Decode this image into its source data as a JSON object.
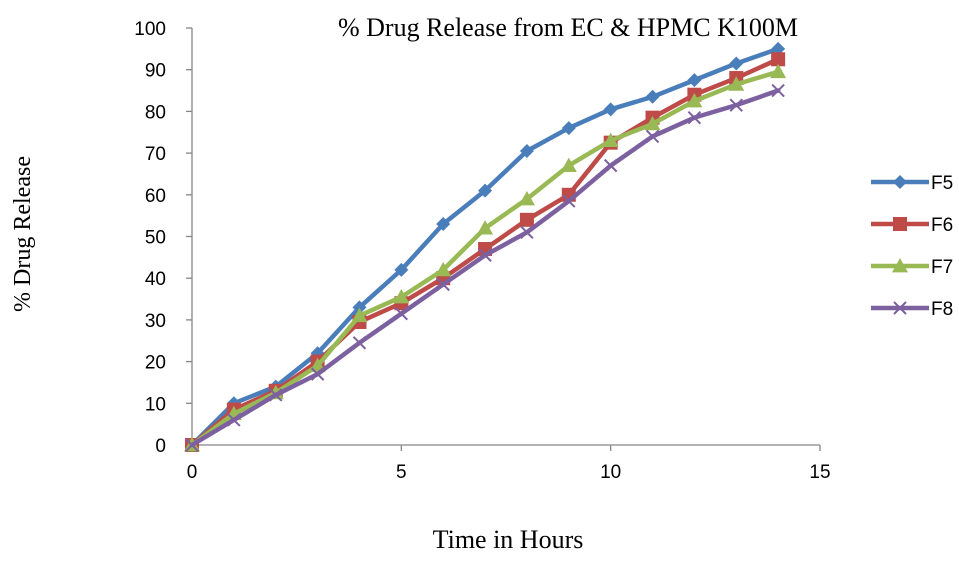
{
  "chart_data": {
    "type": "line",
    "title": "% Drug Release from EC & HPMC K100M",
    "xlabel": "Time in Hours",
    "ylabel": "% Drug Release",
    "xlim": [
      0,
      15
    ],
    "ylim": [
      0,
      100
    ],
    "xticks": [
      0,
      5,
      10,
      15
    ],
    "yticks": [
      0,
      10,
      20,
      30,
      40,
      50,
      60,
      70,
      80,
      90,
      100
    ],
    "grid": false,
    "legend_position": "right",
    "x": [
      0,
      1,
      2,
      3,
      4,
      5,
      6,
      7,
      8,
      9,
      10,
      11,
      12,
      13,
      14
    ],
    "series": [
      {
        "name": "F5",
        "color": "#4a7ebb",
        "marker": "diamond",
        "values": [
          0,
          10,
          14,
          22,
          33,
          42,
          53,
          61,
          70.5,
          76,
          80.5,
          83.5,
          87.5,
          91.5,
          95
        ]
      },
      {
        "name": "F6",
        "color": "#be4b48",
        "marker": "square",
        "values": [
          0,
          8.5,
          13,
          20,
          29.5,
          34,
          40,
          47,
          54,
          60,
          72.5,
          78.5,
          84,
          88,
          92.5
        ]
      },
      {
        "name": "F7",
        "color": "#98b954",
        "marker": "triangle",
        "values": [
          0,
          7.5,
          12.5,
          19,
          31,
          35.5,
          42,
          52,
          59,
          67,
          73,
          77,
          82.5,
          86.5,
          89.5
        ]
      },
      {
        "name": "F8",
        "color": "#7d60a0",
        "marker": "x",
        "values": [
          0,
          6,
          12,
          17,
          24.5,
          31.5,
          38.5,
          45.5,
          51,
          58.5,
          67,
          74,
          78.5,
          81.5,
          85
        ]
      }
    ]
  }
}
